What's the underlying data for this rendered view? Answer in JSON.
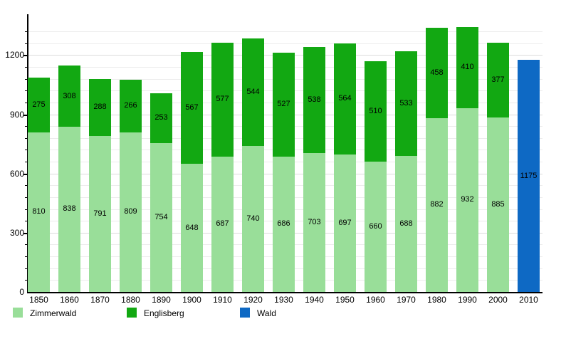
{
  "chart_data": {
    "type": "bar",
    "stacked": true,
    "title": "",
    "xlabel": "",
    "ylabel": "",
    "categories": [
      "1850",
      "1860",
      "1870",
      "1880",
      "1890",
      "1900",
      "1910",
      "1920",
      "1930",
      "1940",
      "1950",
      "1960",
      "1970",
      "1980",
      "1990",
      "2000",
      "2010"
    ],
    "series": [
      {
        "name": "Zimmerwald",
        "color": "#99de99",
        "values": [
          810,
          838,
          791,
          809,
          754,
          648,
          687,
          740,
          686,
          703,
          697,
          660,
          688,
          882,
          932,
          885,
          null
        ]
      },
      {
        "name": "Englisberg",
        "color": "#12a812",
        "values": [
          275,
          308,
          288,
          266,
          253,
          567,
          577,
          544,
          527,
          538,
          564,
          510,
          533,
          458,
          410,
          377,
          null
        ]
      },
      {
        "name": "Wald",
        "color": "#0e69c4",
        "values": [
          null,
          null,
          null,
          null,
          null,
          null,
          null,
          null,
          null,
          null,
          null,
          null,
          null,
          null,
          null,
          null,
          1175
        ]
      }
    ],
    "y_ticks": [
      0,
      300,
      600,
      900,
      1200
    ],
    "ylim": [
      0,
      1400
    ],
    "minor_grid_step": 60,
    "grid": true,
    "legend_position": "bottom",
    "legend": [
      "Zimmerwald",
      "Englisberg",
      "Wald"
    ]
  },
  "colors": {
    "background": "#ffffff",
    "axis": "#000000",
    "grid_minor": "#ececec",
    "grid_major": "#dcdcdc",
    "text": "#000000"
  }
}
